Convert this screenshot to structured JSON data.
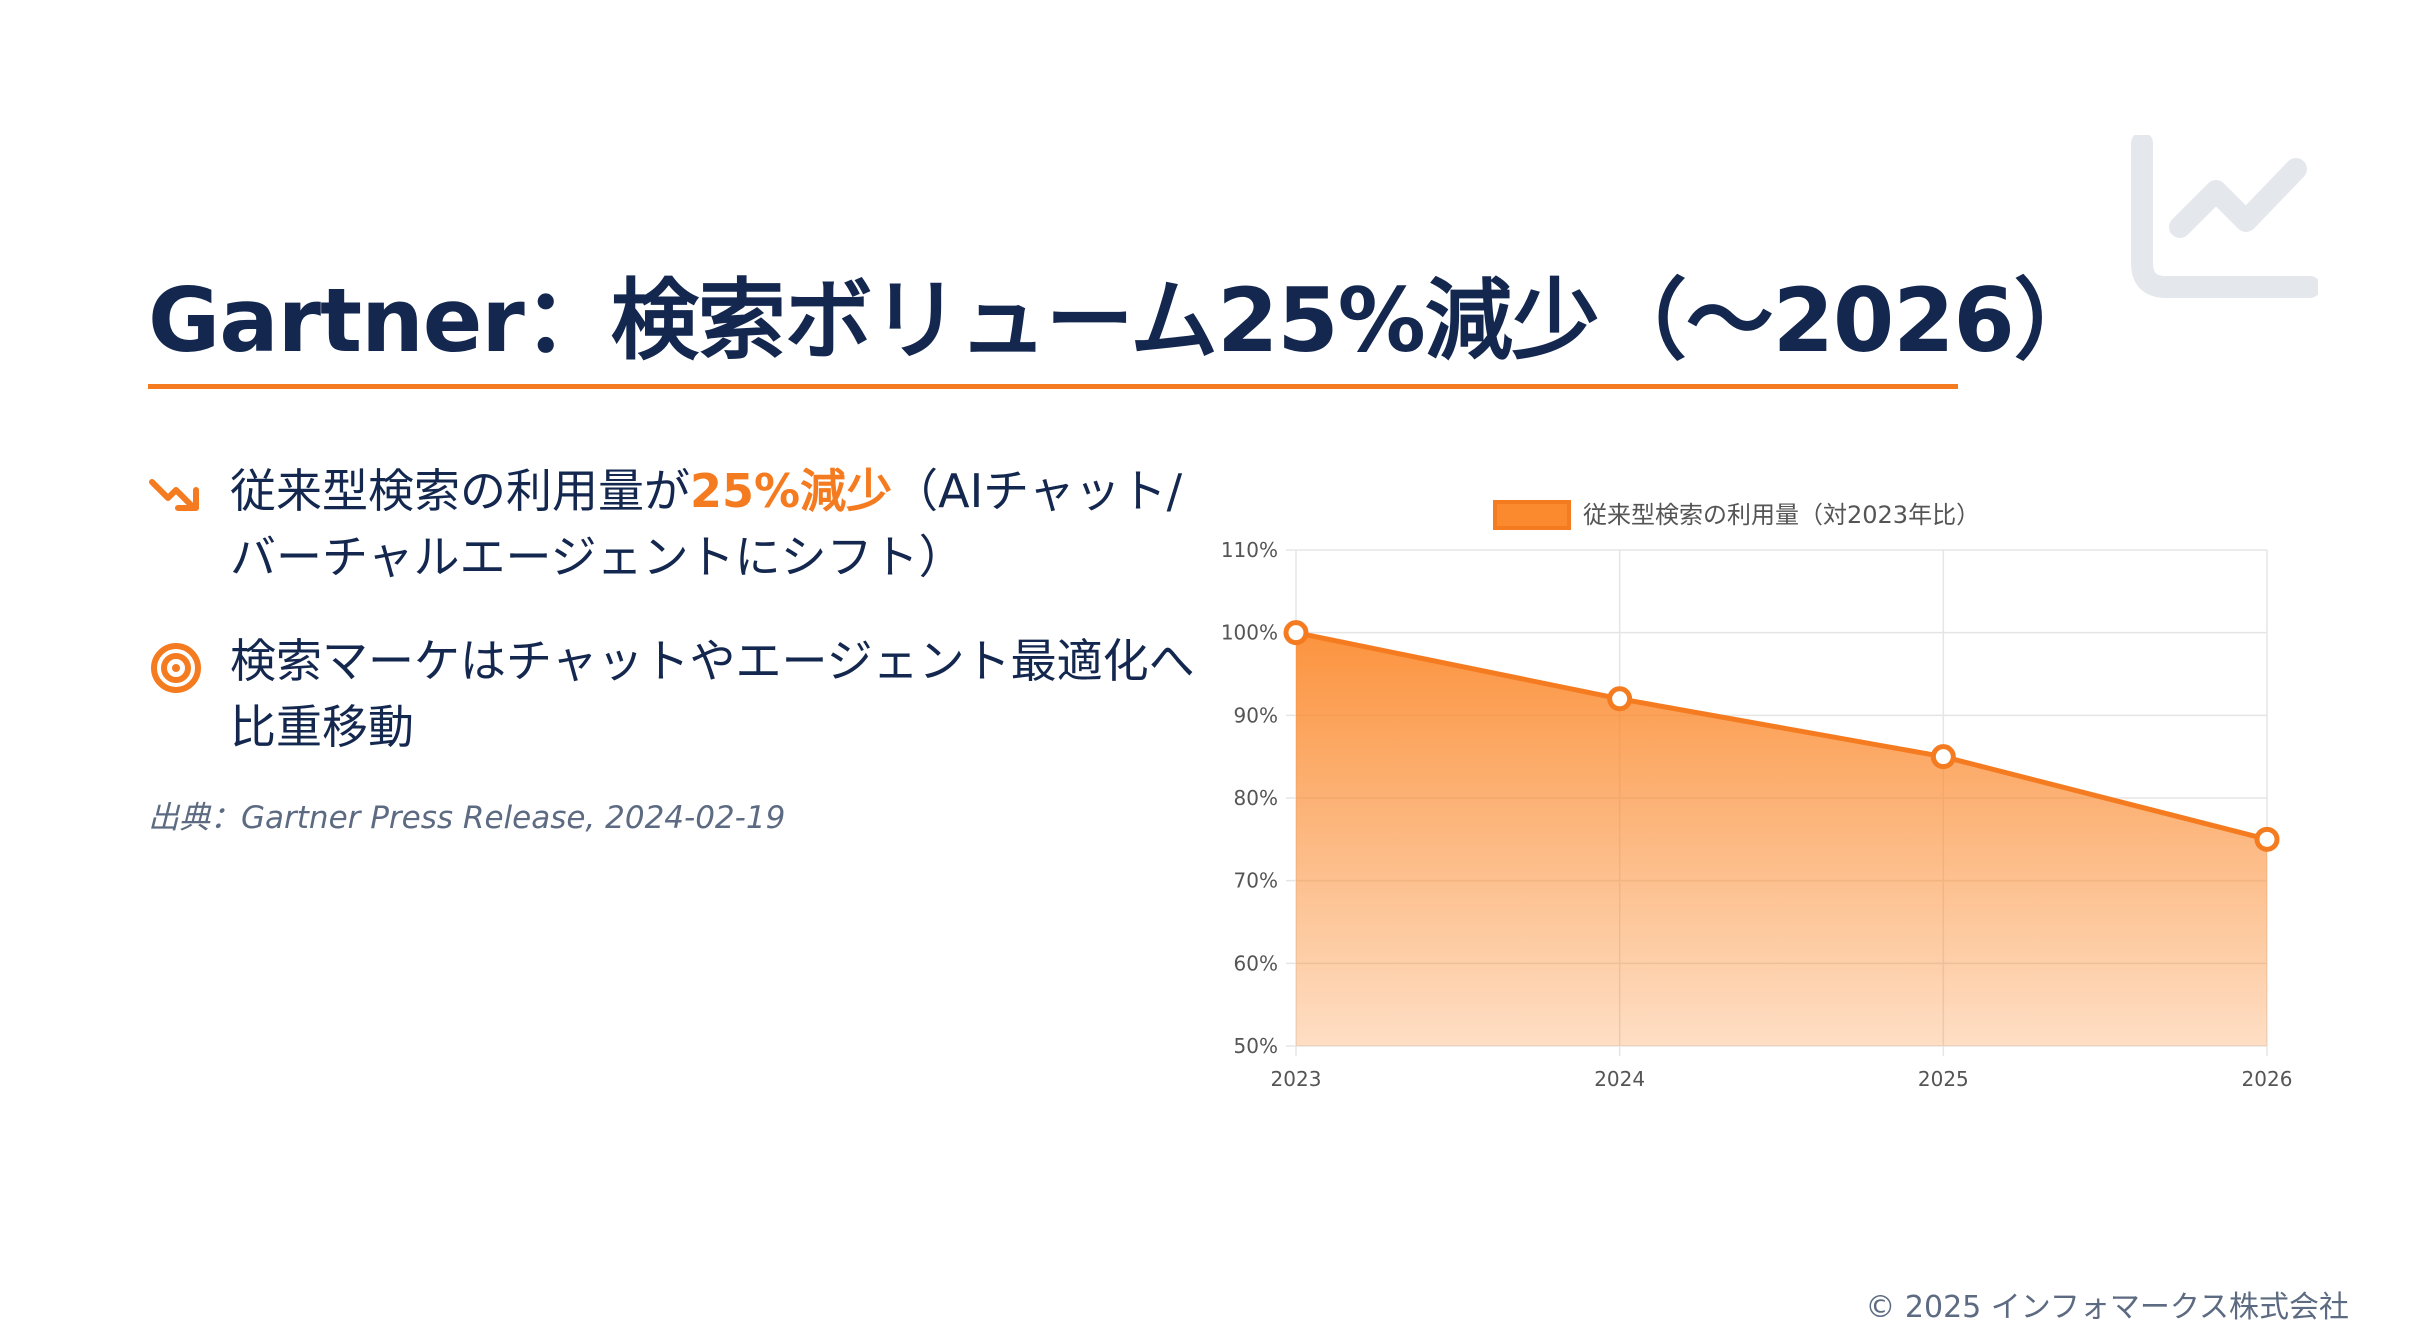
{
  "slide": {
    "title": "Gartner：検索ボリューム25%減少（〜2026）",
    "bullets": [
      {
        "icon": "trend-down-arrow-icon",
        "text_before": "従来型検索の利用量が",
        "highlight": "25%減少",
        "text_after": "（AIチャット/バーチャルエージェントにシフト）"
      },
      {
        "icon": "target-icon",
        "text": "検索マーケはチャットやエージェント最適化へ比重移動"
      }
    ],
    "source": "出典：Gartner Press Release, 2024-02-19",
    "copyright": "© 2025 インフォマークス株式会社",
    "decor_icon": "line-chart-icon"
  },
  "colors": {
    "accent": "#f47b20",
    "title": "#13274f",
    "muted": "#5d6b82",
    "decor": "#e4e7ec"
  },
  "chart_data": {
    "type": "area",
    "x": [
      "2023",
      "2024",
      "2025",
      "2026"
    ],
    "series": [
      {
        "name": "従来型検索の利用量（対2023年比）",
        "values": [
          100,
          92,
          85,
          75
        ]
      }
    ],
    "ylim": [
      50,
      110
    ],
    "yticks": [
      "110%",
      "100%",
      "90%",
      "80%",
      "70%",
      "60%",
      "50%"
    ],
    "ytick_values": [
      110,
      100,
      90,
      80,
      70,
      60,
      50
    ],
    "grid": true,
    "legend": "top"
  }
}
